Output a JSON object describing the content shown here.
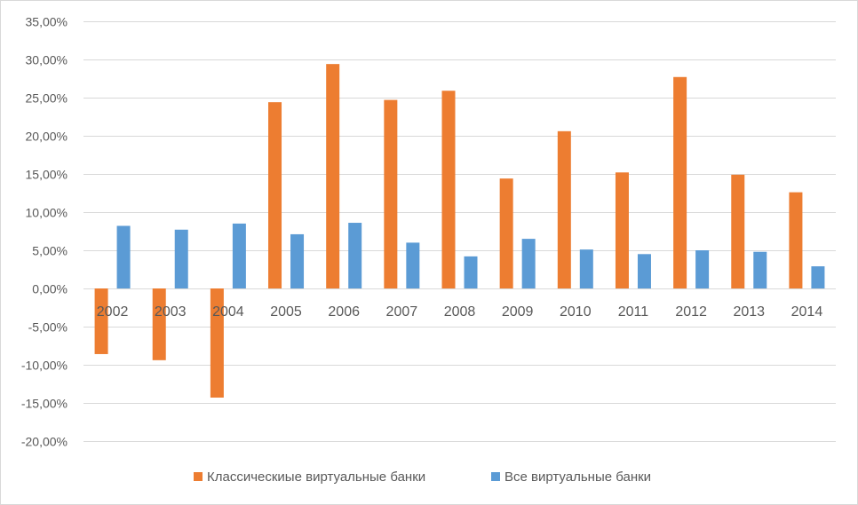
{
  "chart_data": {
    "type": "bar",
    "title": "",
    "xlabel": "",
    "ylabel": "",
    "ylim": [
      -20,
      35
    ],
    "y_ticks": [
      35,
      30,
      25,
      20,
      15,
      10,
      5,
      0,
      -5,
      -10,
      -15,
      -20
    ],
    "y_tick_labels": [
      "35,00%",
      "30,00%",
      "25,00%",
      "20,00%",
      "15,00%",
      "10,00%",
      "5,00%",
      "0,00%",
      "-5,00%",
      "-10,00%",
      "-15,00%",
      "-20,00%"
    ],
    "grid": true,
    "legend_position": "bottom",
    "categories": [
      "2002",
      "2003",
      "2004",
      "2005",
      "2006",
      "2007",
      "2008",
      "2009",
      "2010",
      "2011",
      "2012",
      "2013",
      "2014"
    ],
    "series": [
      {
        "name": "Классическиые виртуальные банки",
        "color": "#ed7d31",
        "values": [
          -8.6,
          -9.4,
          -14.3,
          24.4,
          29.4,
          24.7,
          25.9,
          14.4,
          20.6,
          15.2,
          27.7,
          14.9,
          12.6
        ]
      },
      {
        "name": "Все виртуальные банки",
        "color": "#5b9bd5",
        "values": [
          8.2,
          7.7,
          8.5,
          7.1,
          8.6,
          6.0,
          4.2,
          6.5,
          5.1,
          4.5,
          5.0,
          4.8,
          2.9
        ]
      }
    ]
  }
}
